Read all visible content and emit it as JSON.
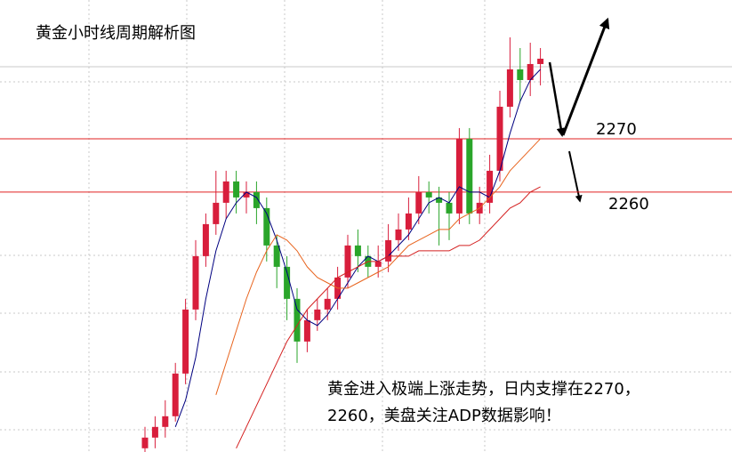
{
  "chart_data": {
    "type": "candlestick",
    "title": "黄金小时线周期解析图",
    "annotation": [
      "黄金进入极端上涨走势，日内支撑在2270，",
      "2260，美盘关注ADP数据影响！"
    ],
    "ylim": [
      2211.3,
      2296
    ],
    "hlines": [
      2270,
      2260
    ],
    "hline_color": "#e02020",
    "up_color": "#d81e3c",
    "down_color": "#2aa52a",
    "open": [
      2212,
      2214,
      2216,
      2218,
      2226,
      2238,
      2248,
      2254,
      2258,
      2262,
      2259,
      2260,
      2257,
      2250,
      2246,
      2240,
      2232,
      2236,
      2238,
      2240,
      2244,
      2250,
      2248,
      2246,
      2247,
      2251,
      2253,
      2256,
      2260,
      2259,
      2258,
      2256,
      2270,
      2256,
      2258,
      2264,
      2276,
      2283,
      2281,
      2284
    ],
    "high": [
      2216,
      2218,
      2221,
      2228,
      2240,
      2251,
      2256,
      2264,
      2264,
      2264,
      2262,
      2262,
      2259,
      2252,
      2248,
      2242,
      2238,
      2240,
      2242,
      2246,
      2252,
      2253,
      2250,
      2250,
      2254,
      2256,
      2259,
      2263,
      2262,
      2261,
      2260,
      2272,
      2272,
      2261,
      2267,
      2279,
      2289,
      2287,
      2288,
      2287
    ],
    "low": [
      2210,
      2212,
      2214,
      2217,
      2224,
      2236,
      2246,
      2252,
      2255,
      2256,
      2256,
      2254,
      2247,
      2242,
      2236,
      2228,
      2230,
      2234,
      2236,
      2238,
      2242,
      2245,
      2244,
      2244,
      2245,
      2249,
      2251,
      2254,
      2256,
      2250,
      2251,
      2254,
      2254,
      2254,
      2256,
      2262,
      2274,
      2277,
      2278,
      2280
    ],
    "close": [
      2214,
      2216,
      2218,
      2226,
      2238,
      2248,
      2254,
      2258,
      2262,
      2259,
      2260,
      2257,
      2250,
      2246,
      2240,
      2232,
      2236,
      2238,
      2240,
      2244,
      2250,
      2248,
      2246,
      2247,
      2251,
      2253,
      2256,
      2260,
      2259,
      2258,
      2256,
      2270,
      2256,
      2258,
      2264,
      2276,
      2283,
      2281,
      2284,
      2285
    ],
    "lines": [
      {
        "color": "#000080",
        "values": [
          null,
          null,
          null,
          2216,
          2221,
          2229,
          2240,
          2249,
          2255,
          2258,
          2260,
          2259,
          2256,
          2251,
          2245,
          2238,
          2236,
          2235,
          2237,
          2240,
          2243,
          2246,
          2248,
          2247,
          2248,
          2250,
          2252,
          2255,
          2258,
          2259,
          2258,
          2261,
          2260,
          2260,
          2259,
          2264,
          2271,
          2277,
          2281,
          2283
        ]
      },
      {
        "color": "#e8641e",
        "values": [
          null,
          null,
          null,
          null,
          null,
          null,
          null,
          2222,
          2228,
          2234,
          2240,
          2245,
          2249,
          2252,
          2251,
          2249,
          2246,
          2244,
          2243,
          2242,
          2242,
          2243,
          2244,
          2245,
          2246,
          2248,
          2250,
          2251,
          2252,
          2253,
          2253,
          2255,
          2256,
          2257,
          2259,
          2261,
          2264,
          2266,
          2268,
          2270
        ]
      },
      {
        "color": "#d42020",
        "values": [
          null,
          null,
          null,
          null,
          null,
          null,
          null,
          null,
          null,
          2212,
          2216,
          2220,
          2224,
          2228,
          2232,
          2235,
          2238,
          2240,
          2242,
          2244,
          2245,
          2246,
          2247,
          2247,
          2248,
          2248,
          2248,
          2249,
          2249,
          2249,
          2249,
          2250,
          2250,
          2251,
          2253,
          2255,
          2257,
          2258,
          2260,
          2261
        ]
      }
    ]
  }
}
